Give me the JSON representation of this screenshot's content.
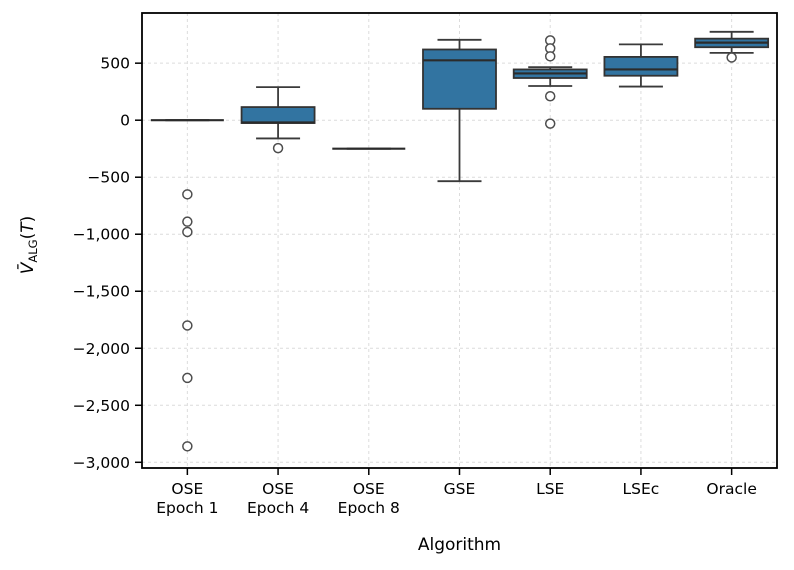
{
  "chart_data": {
    "type": "boxplot",
    "title": "",
    "xlabel": "Algorithm",
    "ylabel": {
      "base": "V̄",
      "subscript": "ALG",
      "open": "(",
      "arg": "T",
      "close": ")"
    },
    "ylim": [
      -3050,
      940
    ],
    "grid": "both-dashed",
    "yticks": [
      {
        "value": 500,
        "label": "500"
      },
      {
        "value": 0,
        "label": "0"
      },
      {
        "value": -500,
        "label": "−500"
      },
      {
        "value": -1000,
        "label": "−1,000"
      },
      {
        "value": -1500,
        "label": "−1,500"
      },
      {
        "value": -2000,
        "label": "−2,000"
      },
      {
        "value": -2500,
        "label": "−2,500"
      },
      {
        "value": -3000,
        "label": "−3,000"
      }
    ],
    "series": [
      {
        "name": "OSE Epoch 1",
        "label_lines": [
          "OSE",
          "Epoch 1"
        ],
        "whislo": 0,
        "q1": 0,
        "med": 0,
        "q3": 0,
        "whishi": 0,
        "fliers": [
          -650,
          -890,
          -980,
          -1800,
          -2260,
          -2860
        ]
      },
      {
        "name": "OSE Epoch 4",
        "label_lines": [
          "OSE",
          "Epoch 4"
        ],
        "whislo": -160,
        "q1": -25,
        "med": -20,
        "q3": 115,
        "whishi": 290,
        "fliers": [
          -245
        ]
      },
      {
        "name": "OSE Epoch 8",
        "label_lines": [
          "OSE",
          "Epoch 8"
        ],
        "whislo": -250,
        "q1": -250,
        "med": -250,
        "q3": -250,
        "whishi": -250,
        "fliers": []
      },
      {
        "name": "GSE",
        "label_lines": [
          "GSE"
        ],
        "whislo": -535,
        "q1": 100,
        "med": 525,
        "q3": 620,
        "whishi": 705,
        "fliers": []
      },
      {
        "name": "LSE",
        "label_lines": [
          "LSE"
        ],
        "whislo": 300,
        "q1": 370,
        "med": 410,
        "q3": 445,
        "whishi": 465,
        "fliers": [
          700,
          630,
          560,
          210,
          -30
        ]
      },
      {
        "name": "LSEc",
        "label_lines": [
          "LSEc"
        ],
        "whislo": 295,
        "q1": 390,
        "med": 445,
        "q3": 555,
        "whishi": 665,
        "fliers": []
      },
      {
        "name": "Oracle",
        "label_lines": [
          "Oracle"
        ],
        "whislo": 590,
        "q1": 640,
        "med": 680,
        "q3": 715,
        "whishi": 775,
        "fliers": [
          550
        ]
      }
    ],
    "colors": {
      "box_fill": "#3274a1",
      "box_edge": "#333333",
      "median": "#2b2b2b",
      "whisker": "#3a3a3a",
      "flier_edge": "#4d4d4d",
      "grid": "#dcdcdc",
      "spine": "#000000"
    }
  }
}
